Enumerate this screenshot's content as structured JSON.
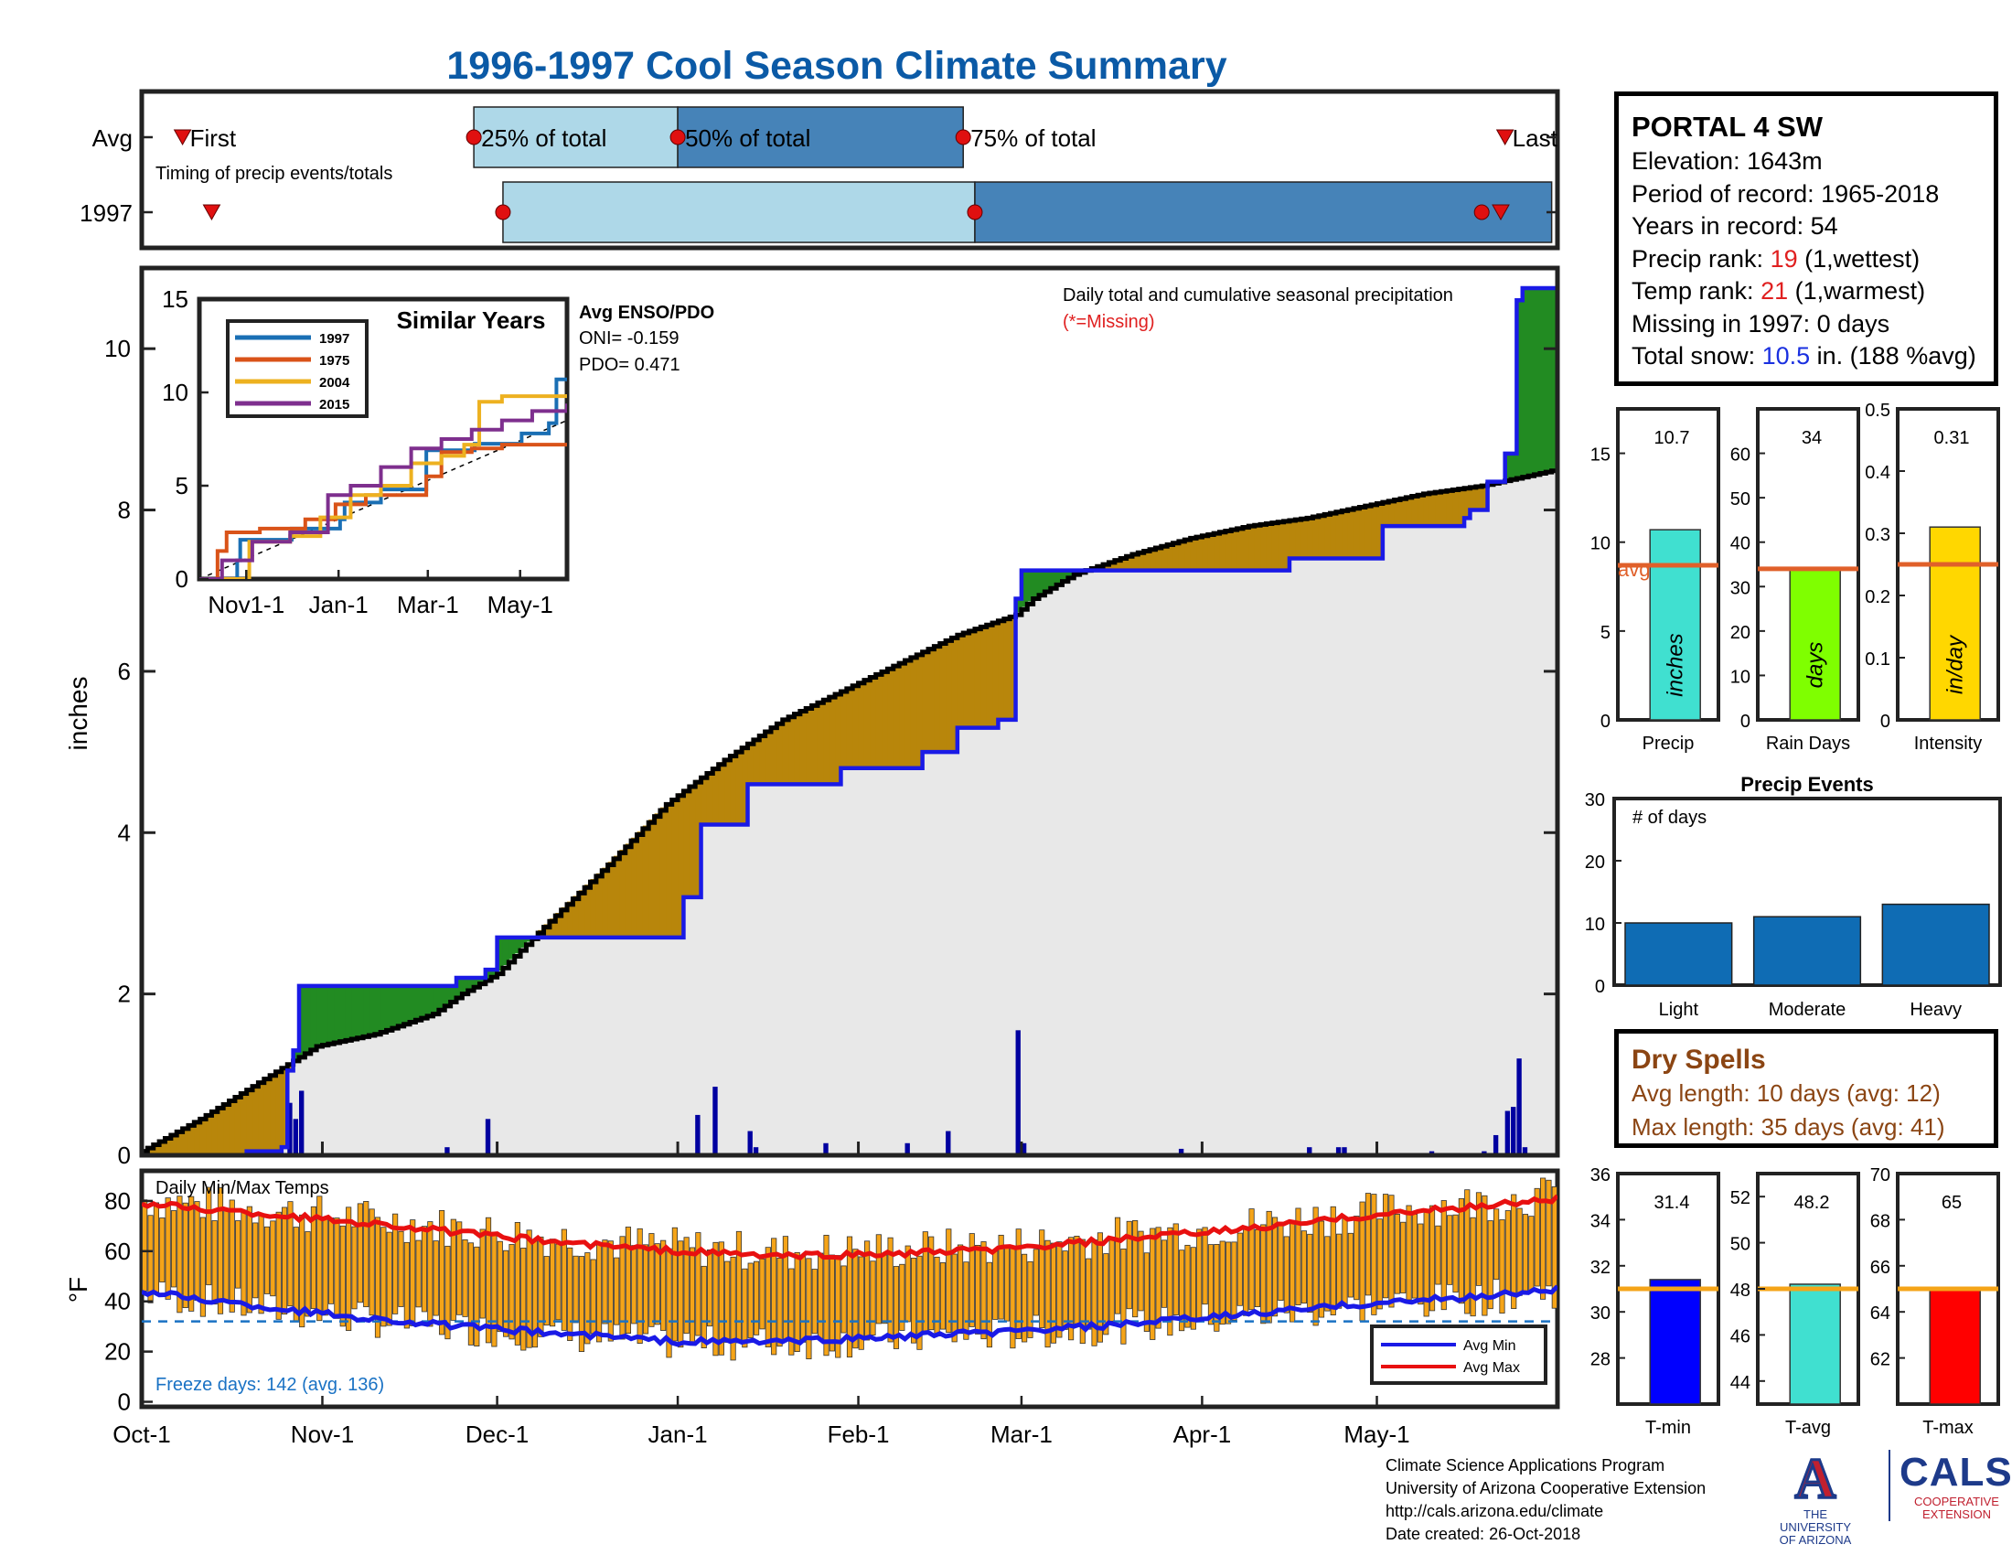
{
  "title": "1996-1997 Cool Season Climate Summary",
  "station": {
    "name": "PORTAL 4 SW",
    "elevation": "Elevation: 1643m",
    "period": "Period of record: 1965-2018",
    "years": "Years in record: 54",
    "precip_rank_label": "Precip rank: ",
    "precip_rank": "19",
    "precip_rank_note": " (1,wettest)",
    "temp_rank_label": "Temp rank: ",
    "temp_rank": "21",
    "temp_rank_note": " (1,warmest)",
    "missing": "Missing in 1997: 0 days",
    "snow_label": "Total snow: ",
    "snow_value": "10.5",
    "snow_note": " in. (188 %avg)"
  },
  "dry_spells": {
    "title": "Dry Spells",
    "avg": "Avg length: 10 days (avg: 12)",
    "max": "Max length: 35 days (avg: 41)"
  },
  "footer": {
    "line1": "Climate Science Applications Program",
    "line2": "University of Arizona Cooperative Extension",
    "line3": "http://cals.arizona.edu/climate",
    "line4": " Date created: 26-Oct-2018"
  },
  "logos": {
    "ua_mark": "A",
    "ua_line1": "THE UNIVERSITY",
    "ua_line2": "OF ARIZONA",
    "cals": "CALS",
    "cals_line1": "COOPERATIVE",
    "cals_line2": "EXTENSION"
  },
  "colors": {
    "title": "#0b5aa6",
    "quartile_light": "#aed8e8",
    "quartile_dark": "#4683b8",
    "above_avg": "#228b22",
    "below_avg": "#b8860b",
    "climatology": "#e8e8e8",
    "season_line": "#1a1ae6",
    "avg_line": "#000000",
    "daily_bar": "#0000a0",
    "temp_bar": "#f5a418",
    "avg_min": "#1a1ae6",
    "avg_max": "#e81010",
    "freeze_line": "#1a72c4",
    "avg_marker": "#e0602a"
  },
  "chart_data": [
    {
      "id": "timing",
      "type": "timeline",
      "rows": [
        "Avg",
        "1997"
      ],
      "labels": {
        "first": "First",
        "p25": "25% of total",
        "p50": "50% of total",
        "p75": "75% of total",
        "last": "Last"
      },
      "caption": "Timing of precip events/totals",
      "avg": {
        "first": "Oct-8",
        "p25": "Nov-27",
        "p50": "Jan-1",
        "p75": "Feb-19",
        "last": "May-23"
      },
      "y1997": {
        "first": "Oct-13",
        "p25": "Dec-2",
        "p75": "Feb-21",
        "last": "May-19",
        "end": "May-31"
      }
    },
    {
      "id": "cumulative",
      "type": "area",
      "ylabel": "inches",
      "note": "Daily total and cumulative seasonal precipitation",
      "missing_note": "(*=Missing)",
      "ylim": [
        0,
        11
      ],
      "yticks": [
        0,
        2,
        4,
        6,
        8,
        10
      ],
      "xticks": [
        "Oct-1",
        "Nov-1",
        "Dec-1",
        "Jan-1",
        "Feb-1",
        "Mar-1",
        "Apr-1",
        "May-1"
      ],
      "xtick_days": [
        0,
        31,
        61,
        92,
        123,
        151,
        182,
        212
      ],
      "ndays": 243,
      "avg_cumulative": [
        [
          0,
          0.05
        ],
        [
          10,
          0.45
        ],
        [
          20,
          0.9
        ],
        [
          30,
          1.35
        ],
        [
          40,
          1.5
        ],
        [
          50,
          1.75
        ],
        [
          55,
          2.0
        ],
        [
          61,
          2.25
        ],
        [
          70,
          2.9
        ],
        [
          80,
          3.6
        ],
        [
          90,
          4.35
        ],
        [
          100,
          4.9
        ],
        [
          110,
          5.4
        ],
        [
          120,
          5.75
        ],
        [
          130,
          6.1
        ],
        [
          140,
          6.45
        ],
        [
          150,
          6.7
        ],
        [
          153,
          6.9
        ],
        [
          160,
          7.2
        ],
        [
          170,
          7.45
        ],
        [
          180,
          7.65
        ],
        [
          190,
          7.8
        ],
        [
          200,
          7.9
        ],
        [
          210,
          8.05
        ],
        [
          220,
          8.2
        ],
        [
          230,
          8.3
        ],
        [
          243,
          8.5
        ]
      ],
      "season_cumulative": [
        [
          0,
          0
        ],
        [
          18,
          0.05
        ],
        [
          24,
          0.1
        ],
        [
          25,
          1.05
        ],
        [
          26,
          1.3
        ],
        [
          27,
          2.1
        ],
        [
          53,
          2.1
        ],
        [
          54,
          2.2
        ],
        [
          59,
          2.3
        ],
        [
          61,
          2.7
        ],
        [
          92,
          2.7
        ],
        [
          93,
          3.2
        ],
        [
          96,
          4.1
        ],
        [
          104,
          4.6
        ],
        [
          106,
          4.6
        ],
        [
          120,
          4.8
        ],
        [
          134,
          5.0
        ],
        [
          140,
          5.3
        ],
        [
          147,
          5.4
        ],
        [
          150,
          6.9
        ],
        [
          151,
          7.25
        ],
        [
          182,
          7.25
        ],
        [
          197,
          7.4
        ],
        [
          213,
          7.8
        ],
        [
          227,
          7.9
        ],
        [
          228,
          8.0
        ],
        [
          231,
          8.35
        ],
        [
          234,
          8.7
        ],
        [
          236,
          10.6
        ],
        [
          237,
          10.75
        ],
        [
          243,
          10.75
        ]
      ],
      "daily": [
        [
          25,
          0.65
        ],
        [
          26,
          0.45
        ],
        [
          27,
          0.8
        ],
        [
          52,
          0.1
        ],
        [
          59,
          0.45
        ],
        [
          95,
          0.5
        ],
        [
          98,
          0.85
        ],
        [
          104,
          0.3
        ],
        [
          105,
          0.1
        ],
        [
          117,
          0.15
        ],
        [
          131,
          0.15
        ],
        [
          138,
          0.3
        ],
        [
          150,
          1.55
        ],
        [
          151,
          0.15
        ],
        [
          178,
          0.08
        ],
        [
          200,
          0.1
        ],
        [
          205,
          0.1
        ],
        [
          206,
          0.1
        ],
        [
          221,
          0.05
        ],
        [
          230,
          0.05
        ],
        [
          232,
          0.25
        ],
        [
          234,
          0.55
        ],
        [
          235,
          0.6
        ],
        [
          236,
          1.2
        ],
        [
          237,
          0.1
        ]
      ]
    },
    {
      "id": "similar_years",
      "type": "line",
      "title": "Similar Years",
      "ylim": [
        0,
        15
      ],
      "yticks": [
        0,
        5,
        10,
        15
      ],
      "xticks": [
        "Nov1-1",
        "Jan-1",
        "Mar-1",
        "May-1"
      ],
      "series": [
        {
          "name": "1997",
          "color": "#1a6fb4",
          "points": [
            [
              0,
              0
            ],
            [
              25,
              1.0
            ],
            [
              27,
              2.1
            ],
            [
              61,
              2.7
            ],
            [
              93,
              3.2
            ],
            [
              96,
              4.1
            ],
            [
              120,
              4.8
            ],
            [
              150,
              6.9
            ],
            [
              182,
              7.25
            ],
            [
              213,
              7.8
            ],
            [
              231,
              8.35
            ],
            [
              236,
              10.7
            ],
            [
              243,
              10.7
            ]
          ]
        },
        {
          "name": "1975",
          "color": "#d95319",
          "points": [
            [
              0,
              0
            ],
            [
              12,
              1.5
            ],
            [
              18,
              2.5
            ],
            [
              40,
              2.7
            ],
            [
              70,
              3.2
            ],
            [
              90,
              4.0
            ],
            [
              110,
              4.5
            ],
            [
              150,
              5.5
            ],
            [
              160,
              6.8
            ],
            [
              180,
              7.0
            ],
            [
              200,
              7.2
            ],
            [
              243,
              7.2
            ]
          ]
        },
        {
          "name": "2004",
          "color": "#edb120",
          "points": [
            [
              0,
              0
            ],
            [
              30,
              0.0
            ],
            [
              33,
              2.0
            ],
            [
              60,
              2.3
            ],
            [
              80,
              3.3
            ],
            [
              100,
              4.5
            ],
            [
              120,
              5.0
            ],
            [
              140,
              6.2
            ],
            [
              160,
              6.6
            ],
            [
              175,
              7.2
            ],
            [
              185,
              9.5
            ],
            [
              200,
              9.8
            ],
            [
              243,
              9.9
            ]
          ]
        },
        {
          "name": "2015",
          "color": "#7e2f8e",
          "points": [
            [
              0,
              0
            ],
            [
              15,
              1.0
            ],
            [
              35,
              2.0
            ],
            [
              60,
              2.5
            ],
            [
              85,
              4.5
            ],
            [
              100,
              5.0
            ],
            [
              120,
              6.0
            ],
            [
              140,
              7.0
            ],
            [
              160,
              7.5
            ],
            [
              180,
              8.0
            ],
            [
              200,
              8.5
            ],
            [
              220,
              9.0
            ],
            [
              243,
              9.4
            ]
          ]
        }
      ],
      "avg_enso_title": "Avg ENSO/PDO",
      "oni": "ONI= -0.159",
      "pdo": "PDO= 0.471"
    },
    {
      "id": "precip_bars",
      "type": "bar",
      "panels": [
        {
          "label": "Precip",
          "value": 10.7,
          "value_text": "10.7",
          "avg": 8.7,
          "ylim": [
            0,
            17.5
          ],
          "yticks": [
            0,
            5,
            10,
            15
          ],
          "unit": "inches",
          "color": "#40e0d0",
          "avg_label": "avg"
        },
        {
          "label": "Rain Days",
          "value": 34,
          "value_text": "34",
          "avg": 34,
          "ylim": [
            0,
            70
          ],
          "yticks": [
            0,
            10,
            20,
            30,
            40,
            50,
            60
          ],
          "unit": "days",
          "color": "#7fff00"
        },
        {
          "label": "Intensity",
          "value": 0.31,
          "value_text": "0.31",
          "avg": 0.25,
          "ylim": [
            0,
            0.5
          ],
          "yticks": [
            0,
            0.1,
            0.2,
            0.3,
            0.4,
            0.5
          ],
          "unit": "in/day",
          "color": "#ffd700"
        }
      ]
    },
    {
      "id": "precip_events",
      "type": "bar",
      "title": "Precip Events",
      "ylabel_inside": "# of days",
      "categories": [
        "Light",
        "Moderate",
        "Heavy"
      ],
      "values": [
        10,
        11,
        13
      ],
      "ylim": [
        0,
        30
      ],
      "yticks": [
        0,
        10,
        20,
        30
      ]
    },
    {
      "id": "temps",
      "type": "bar",
      "title": "Daily Min/Max Temps",
      "ylabel": "°F",
      "ylim": [
        -2,
        92
      ],
      "yticks": [
        0,
        20,
        40,
        60,
        80
      ],
      "freeze_note": "Freeze days: 142 (avg. 136)",
      "freeze_line": 32,
      "legend": [
        "Avg Min",
        "Avg Max"
      ],
      "avg_max": [
        [
          0,
          79
        ],
        [
          20,
          75
        ],
        [
          40,
          71
        ],
        [
          60,
          66
        ],
        [
          80,
          62
        ],
        [
          92,
          60
        ],
        [
          110,
          58
        ],
        [
          130,
          59
        ],
        [
          150,
          61
        ],
        [
          170,
          65
        ],
        [
          190,
          69
        ],
        [
          210,
          74
        ],
        [
          230,
          78
        ],
        [
          243,
          81
        ]
      ],
      "avg_min": [
        [
          0,
          44
        ],
        [
          20,
          38
        ],
        [
          40,
          33
        ],
        [
          60,
          29
        ],
        [
          80,
          26
        ],
        [
          92,
          24
        ],
        [
          110,
          24
        ],
        [
          130,
          26
        ],
        [
          150,
          28
        ],
        [
          170,
          31
        ],
        [
          190,
          35
        ],
        [
          210,
          39
        ],
        [
          230,
          42
        ],
        [
          243,
          45
        ]
      ]
    },
    {
      "id": "temp_bars",
      "type": "bar",
      "panels": [
        {
          "label": "T-min",
          "value": 31.4,
          "value_text": "31.4",
          "avg": 31.0,
          "ylim": [
            26,
            36
          ],
          "yticks": [
            28,
            30,
            32,
            34,
            36
          ],
          "color": "#0000ff"
        },
        {
          "label": "T-avg",
          "value": 48.2,
          "value_text": "48.2",
          "avg": 48.0,
          "ylim": [
            43,
            53
          ],
          "yticks": [
            44,
            46,
            48,
            50,
            52
          ],
          "color": "#40e0d0"
        },
        {
          "label": "T-max",
          "value": 65,
          "value_text": "65",
          "avg": 65.0,
          "ylim": [
            60,
            70
          ],
          "yticks": [
            62,
            64,
            66,
            68,
            70
          ],
          "color": "#ff0000"
        }
      ]
    }
  ]
}
